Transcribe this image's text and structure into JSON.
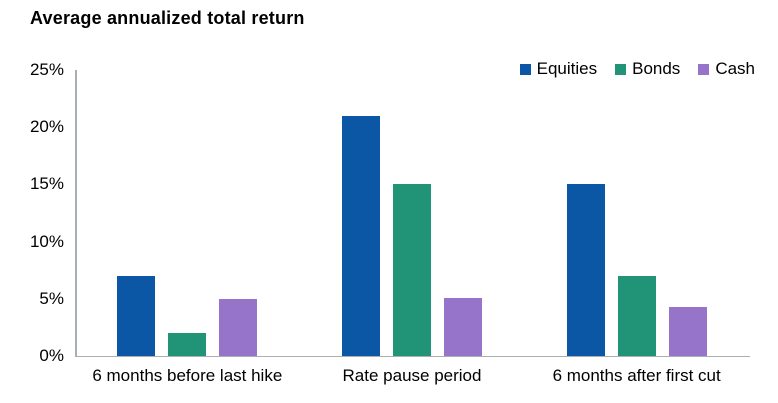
{
  "title": "Average annualized total return",
  "chart_data": {
    "type": "bar",
    "title": "Average annualized total return",
    "categories": [
      "6 months before last hike",
      "Rate pause period",
      "6 months after first cut"
    ],
    "series": [
      {
        "name": "Equities",
        "color": "#0b57a5",
        "values": [
          7,
          21,
          15
        ]
      },
      {
        "name": "Bonds",
        "color": "#219477",
        "values": [
          2,
          15,
          7
        ]
      },
      {
        "name": "Cash",
        "color": "#9674c9",
        "values": [
          5,
          5.1,
          4.3
        ]
      }
    ],
    "xlabel": "",
    "ylabel": "",
    "ylim": [
      0,
      25
    ],
    "ytick_values": [
      0,
      5,
      10,
      15,
      20,
      25
    ],
    "ytick_labels": [
      "0%",
      "5%",
      "10%",
      "15%",
      "20%",
      "25%"
    ],
    "grid": false,
    "legend_position": "top-right"
  },
  "colors": {
    "axis": "#a7aeb4",
    "text": "#000000",
    "background": "#ffffff"
  }
}
